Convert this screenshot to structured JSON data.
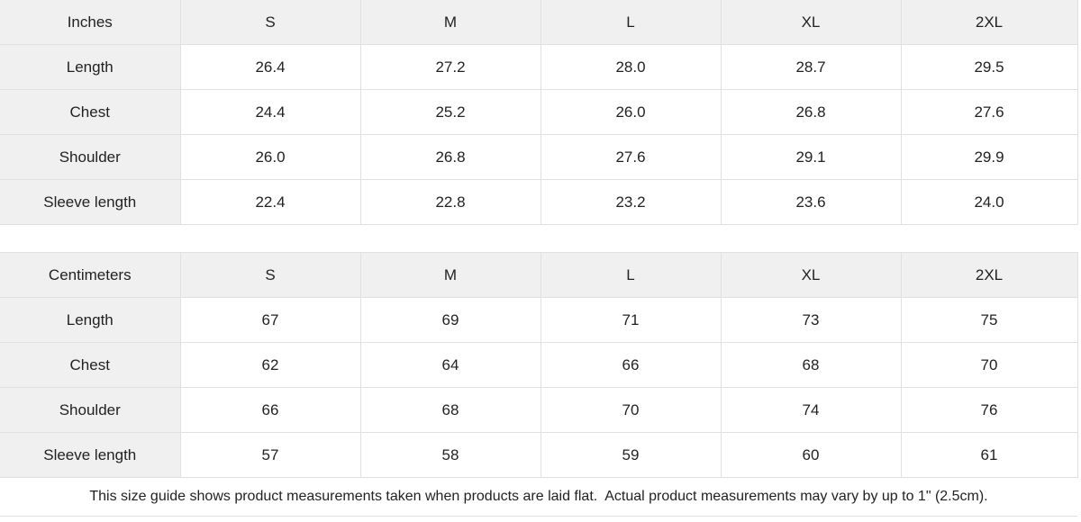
{
  "theme": {
    "shaded_cell_bg": "#f0f0f0",
    "cell_bg": "#ffffff",
    "border_color": "#e0e0e0",
    "text_color": "#222222"
  },
  "tables": [
    {
      "unit_label": "Inches",
      "columns": [
        "S",
        "M",
        "L",
        "XL",
        "2XL"
      ],
      "rows": [
        {
          "label": "Length",
          "values": [
            "26.4",
            "27.2",
            "28.0",
            "28.7",
            "29.5"
          ]
        },
        {
          "label": "Chest",
          "values": [
            "24.4",
            "25.2",
            "26.0",
            "26.8",
            "27.6"
          ]
        },
        {
          "label": "Shoulder",
          "values": [
            "26.0",
            "26.8",
            "27.6",
            "29.1",
            "29.9"
          ]
        },
        {
          "label": "Sleeve length",
          "values": [
            "22.4",
            "22.8",
            "23.2",
            "23.6",
            "24.0"
          ]
        }
      ]
    },
    {
      "unit_label": "Centimeters",
      "columns": [
        "S",
        "M",
        "L",
        "XL",
        "2XL"
      ],
      "rows": [
        {
          "label": "Length",
          "values": [
            "67",
            "69",
            "71",
            "73",
            "75"
          ]
        },
        {
          "label": "Chest",
          "values": [
            "62",
            "64",
            "66",
            "68",
            "70"
          ]
        },
        {
          "label": "Shoulder",
          "values": [
            "66",
            "68",
            "70",
            "74",
            "76"
          ]
        },
        {
          "label": "Sleeve length",
          "values": [
            "57",
            "58",
            "59",
            "60",
            "61"
          ]
        }
      ]
    }
  ],
  "footer": {
    "note": "This size guide shows product measurements taken when products are laid flat.  Actual product measurements may vary by up to 1\" (2.5cm)."
  }
}
